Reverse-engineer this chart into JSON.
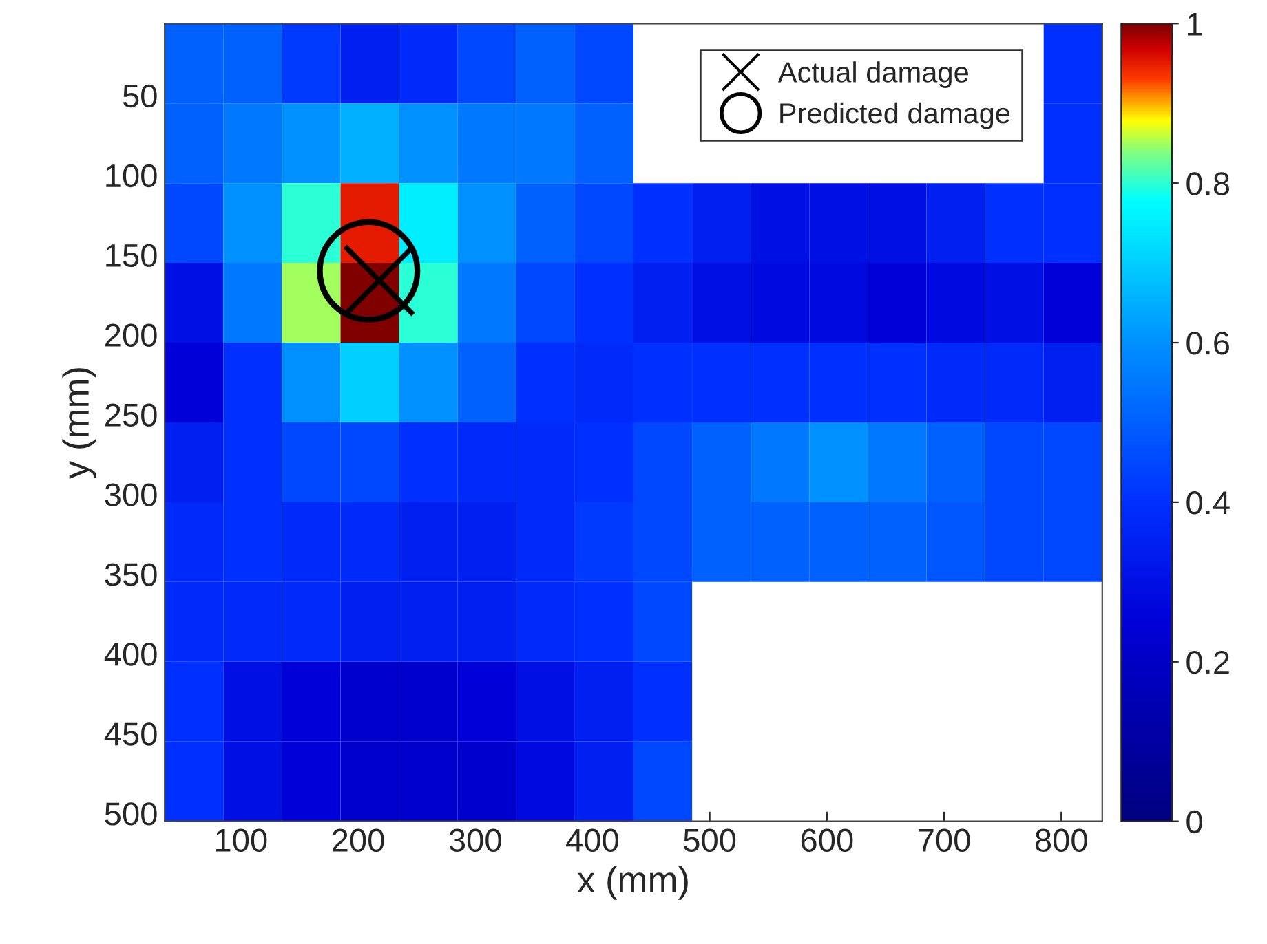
{
  "chart_data": {
    "type": "heatmap",
    "xlabel": "x (mm)",
    "ylabel": "y (mm)",
    "x": [
      60,
      110,
      160,
      210,
      260,
      310,
      360,
      410,
      460,
      510,
      560,
      610,
      660,
      710,
      760,
      810
    ],
    "y": [
      30,
      80,
      130,
      180,
      230,
      280,
      330,
      380,
      430,
      480
    ],
    "cells": [
      [
        0.5,
        0.5,
        0.42,
        0.35,
        0.38,
        0.45,
        0.5,
        0.45,
        null,
        null,
        null,
        null,
        null,
        null,
        null,
        0.4
      ],
      [
        0.5,
        0.55,
        0.6,
        0.65,
        0.6,
        0.55,
        0.55,
        0.5,
        null,
        null,
        null,
        null,
        null,
        null,
        null,
        0.4
      ],
      [
        0.45,
        0.6,
        0.8,
        0.95,
        0.75,
        0.6,
        0.5,
        0.45,
        0.4,
        0.35,
        0.3,
        0.3,
        0.3,
        0.35,
        0.4,
        0.4
      ],
      [
        0.3,
        0.55,
        0.85,
        1,
        0.8,
        0.55,
        0.45,
        0.4,
        0.35,
        0.3,
        0.28,
        0.28,
        0.25,
        0.28,
        0.3,
        0.25
      ],
      [
        0.25,
        0.4,
        0.6,
        0.7,
        0.6,
        0.5,
        0.4,
        0.38,
        0.4,
        0.4,
        0.4,
        0.4,
        0.4,
        0.38,
        0.38,
        0.35
      ],
      [
        0.35,
        0.4,
        0.45,
        0.45,
        0.4,
        0.38,
        0.38,
        0.4,
        0.45,
        0.5,
        0.55,
        0.6,
        0.55,
        0.5,
        0.45,
        0.45
      ],
      [
        0.38,
        0.4,
        0.38,
        0.38,
        0.35,
        0.35,
        0.38,
        0.42,
        0.45,
        0.5,
        0.5,
        0.5,
        0.5,
        0.48,
        0.45,
        0.45
      ],
      [
        0.38,
        0.38,
        0.38,
        0.35,
        0.35,
        0.35,
        0.38,
        0.4,
        0.45,
        null,
        null,
        null,
        null,
        null,
        null,
        null
      ],
      [
        0.4,
        0.3,
        0.25,
        0.22,
        0.22,
        0.25,
        0.3,
        0.35,
        0.4,
        null,
        null,
        null,
        null,
        null,
        null,
        null
      ],
      [
        0.4,
        0.3,
        0.25,
        0.22,
        0.22,
        0.22,
        0.28,
        0.35,
        0.45,
        null,
        null,
        null,
        null,
        null,
        null,
        null
      ]
    ],
    "xlim": [
      35,
      835
    ],
    "xticks": [
      100,
      200,
      300,
      400,
      500,
      600,
      700,
      800
    ],
    "ylim": [
      505,
      5
    ],
    "yticks": [
      50,
      100,
      150,
      200,
      250,
      300,
      350,
      400,
      450,
      500
    ],
    "clim": [
      0,
      1
    ],
    "cticks": [
      0,
      0.2,
      0.4,
      0.6,
      0.8,
      1
    ],
    "series": [
      {
        "type": "scatter",
        "name": "Actual damage",
        "color": "#000000",
        "marker": "cross",
        "x": [
          218
        ],
        "values": [
          166
        ]
      },
      {
        "type": "scatter",
        "name": "Predicted damage",
        "color": "#000000",
        "marker": "circle",
        "x": [
          209
        ],
        "values": [
          160
        ]
      }
    ],
    "legend": "top right",
    "grid": false
  }
}
